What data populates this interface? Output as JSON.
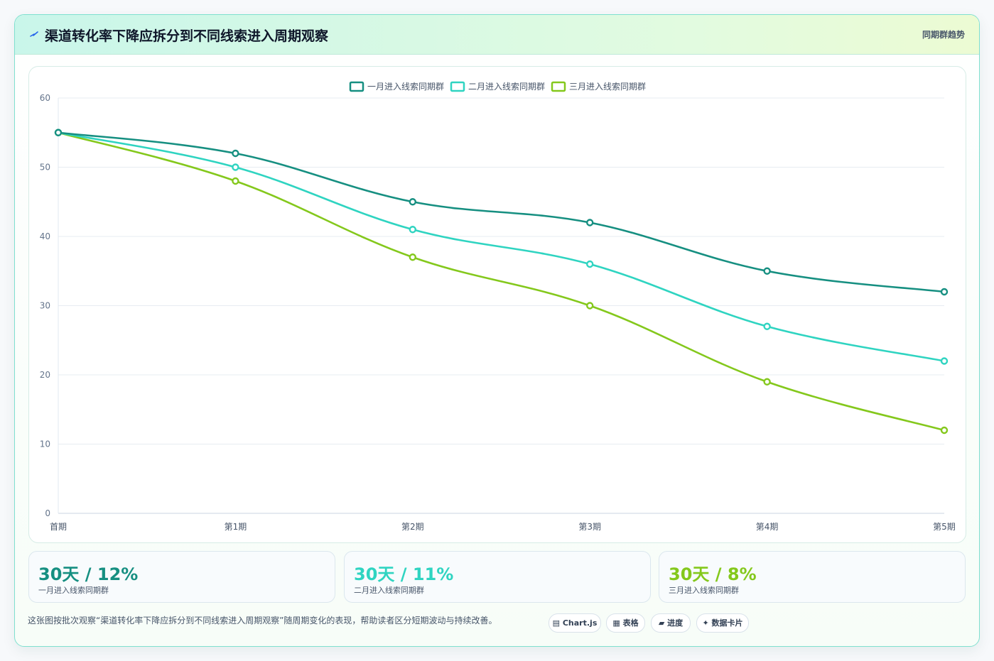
{
  "header": {
    "title": "渠道转化率下降应拆分到不同线索进入周期观察",
    "tag": "同期群趋势",
    "icon": "lightning-icon"
  },
  "chart_data": {
    "type": "line",
    "categories": [
      "首期",
      "第1期",
      "第2期",
      "第3期",
      "第4期",
      "第5期"
    ],
    "series": [
      {
        "name": "一月进入线索同期群",
        "color": "#168f81",
        "values": [
          55,
          52,
          45,
          42,
          35,
          32
        ]
      },
      {
        "name": "二月进入线索同期群",
        "color": "#2fd4c1",
        "values": [
          55,
          50,
          41,
          36,
          27,
          22
        ]
      },
      {
        "name": "三月进入线索同期群",
        "color": "#84c81c",
        "values": [
          55,
          48,
          37,
          30,
          19,
          12
        ]
      }
    ],
    "ylim": [
      0,
      60
    ],
    "yticks": [
      0,
      10,
      20,
      30,
      40,
      50,
      60
    ],
    "title": "",
    "xlabel": "",
    "ylabel": "",
    "legend": "top-center",
    "grid": true
  },
  "stats": [
    {
      "value": "30天 / 12%",
      "label": "一月进入线索同期群",
      "color": "#168f81"
    },
    {
      "value": "30天 / 11%",
      "label": "二月进入线索同期群",
      "color": "#2fd4c1"
    },
    {
      "value": "30天 / 8%",
      "label": "三月进入线索同期群",
      "color": "#84c81c"
    }
  ],
  "footer": {
    "note": "这张图按批次观察“渠道转化率下降应拆分到不同线索进入周期观察”随周期变化的表现，帮助读者区分短期波动与持续改善。",
    "chips": [
      {
        "icon": "chart-icon",
        "label": "Chart.js"
      },
      {
        "icon": "table-icon",
        "label": "表格"
      },
      {
        "icon": "progress-icon",
        "label": "进度"
      },
      {
        "icon": "sparkle-icon",
        "label": "数据卡片"
      }
    ]
  }
}
